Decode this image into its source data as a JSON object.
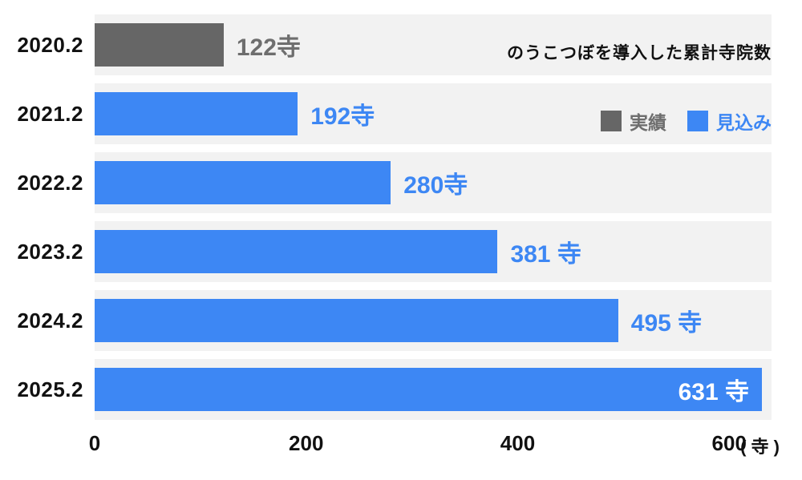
{
  "chart_data": {
    "type": "bar",
    "orientation": "horizontal",
    "title": "のうこつぼを導入した累計寺院数",
    "categories": [
      "2020.2",
      "2021.2",
      "2022.2",
      "2023.2",
      "2024.2",
      "2025.2"
    ],
    "values": [
      122,
      192,
      280,
      381,
      495,
      631
    ],
    "value_labels": [
      "122寺",
      "192寺",
      "280寺",
      "381 寺",
      "495 寺",
      "631 寺"
    ],
    "series_by_row": [
      "actual",
      "forecast",
      "forecast",
      "forecast",
      "forecast",
      "forecast"
    ],
    "label_inside": [
      false,
      false,
      false,
      false,
      false,
      true
    ],
    "legend": [
      {
        "name": "実績",
        "key": "actual"
      },
      {
        "name": "見込み",
        "key": "forecast"
      }
    ],
    "legend_position": "top-right",
    "grid": false,
    "xlabel": "",
    "ylabel": "",
    "xlim": [
      0,
      640
    ],
    "x_ticks": [
      "0",
      "200",
      "400",
      "600"
    ],
    "x_tick_values": [
      0,
      200,
      400,
      600
    ],
    "x_unit": "( 寺 )",
    "colors": {
      "actual": "#666666",
      "forecast": "#3d87f4",
      "actual_text": "#6e6e6e",
      "forecast_text": "#3d87f4",
      "inside_text": "#ffffff",
      "band": "#f2f2f2",
      "axis_text": "#111111"
    }
  }
}
